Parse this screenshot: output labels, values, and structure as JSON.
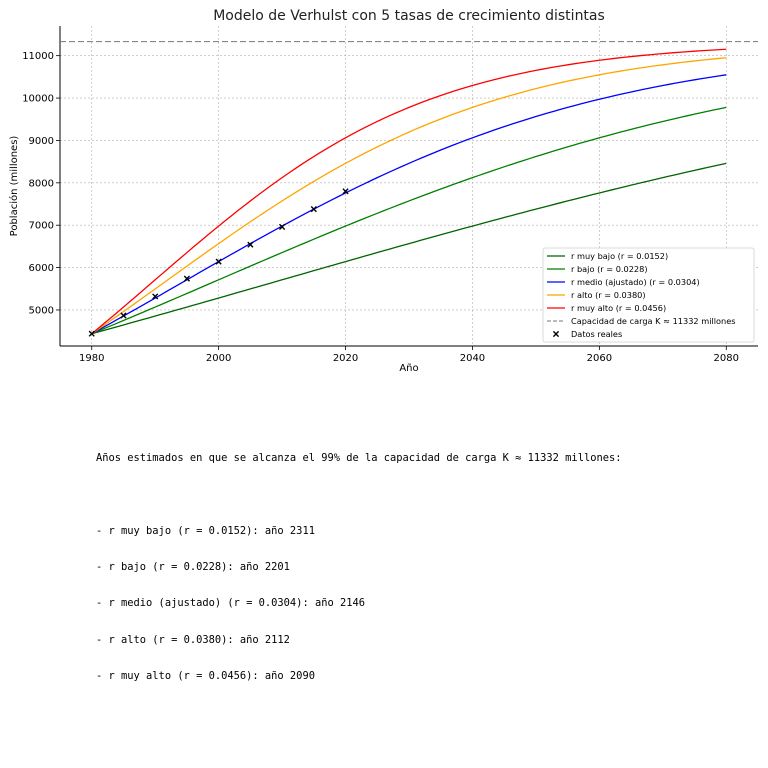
{
  "chart_data": {
    "type": "line",
    "title": "Modelo de Verhulst con 5 tasas de crecimiento distintas",
    "xlabel": "Año",
    "ylabel": "Población (millones)",
    "xlim": [
      1975,
      2085
    ],
    "ylim": [
      4150,
      11700
    ],
    "x_ticks": [
      1980,
      2000,
      2020,
      2040,
      2060,
      2080
    ],
    "y_ticks": [
      5000,
      6000,
      7000,
      8000,
      9000,
      10000,
      11000
    ],
    "grid": true,
    "legend_position": "center-right",
    "model": {
      "P0": 4440,
      "t0": 1980,
      "K": 11332,
      "t_end": 2080
    },
    "series": [
      {
        "name": "r muy bajo (r = 0.0152)",
        "r": 0.0152,
        "color": "#006400"
      },
      {
        "name": "r bajo (r = 0.0228)",
        "r": 0.0228,
        "color": "#008000"
      },
      {
        "name": "r medio (ajustado) (r = 0.0304)",
        "r": 0.0304,
        "color": "#0000ff"
      },
      {
        "name": "r alto (r = 0.0380)",
        "r": 0.038,
        "color": "#ffa500"
      },
      {
        "name": "r muy alto (r = 0.0456)",
        "r": 0.0456,
        "color": "#ff0000"
      }
    ],
    "capacity_line": {
      "name": "Capacidad de carga K ≈ 11332 millones",
      "y": 11332,
      "color": "#777777"
    },
    "observed": {
      "name": "Datos reales",
      "x": [
        1980,
        1985,
        1990,
        1995,
        2000,
        2005,
        2010,
        2015,
        2020
      ],
      "y": [
        4440,
        4870,
        5320,
        5740,
        6140,
        6540,
        6960,
        7380,
        7800
      ],
      "color": "#000000"
    }
  },
  "notes": {
    "heading": "Años estimados en que se alcanza el 99% de la capacidad de carga K ≈ 11332 millones:",
    "lines": [
      "- r muy bajo (r = 0.0152): año 2311",
      "- r bajo (r = 0.0228): año 2201",
      "- r medio (ajustado) (r = 0.0304): año 2146",
      "- r alto (r = 0.0380): año 2112",
      "- r muy alto (r = 0.0456): año 2090"
    ]
  }
}
